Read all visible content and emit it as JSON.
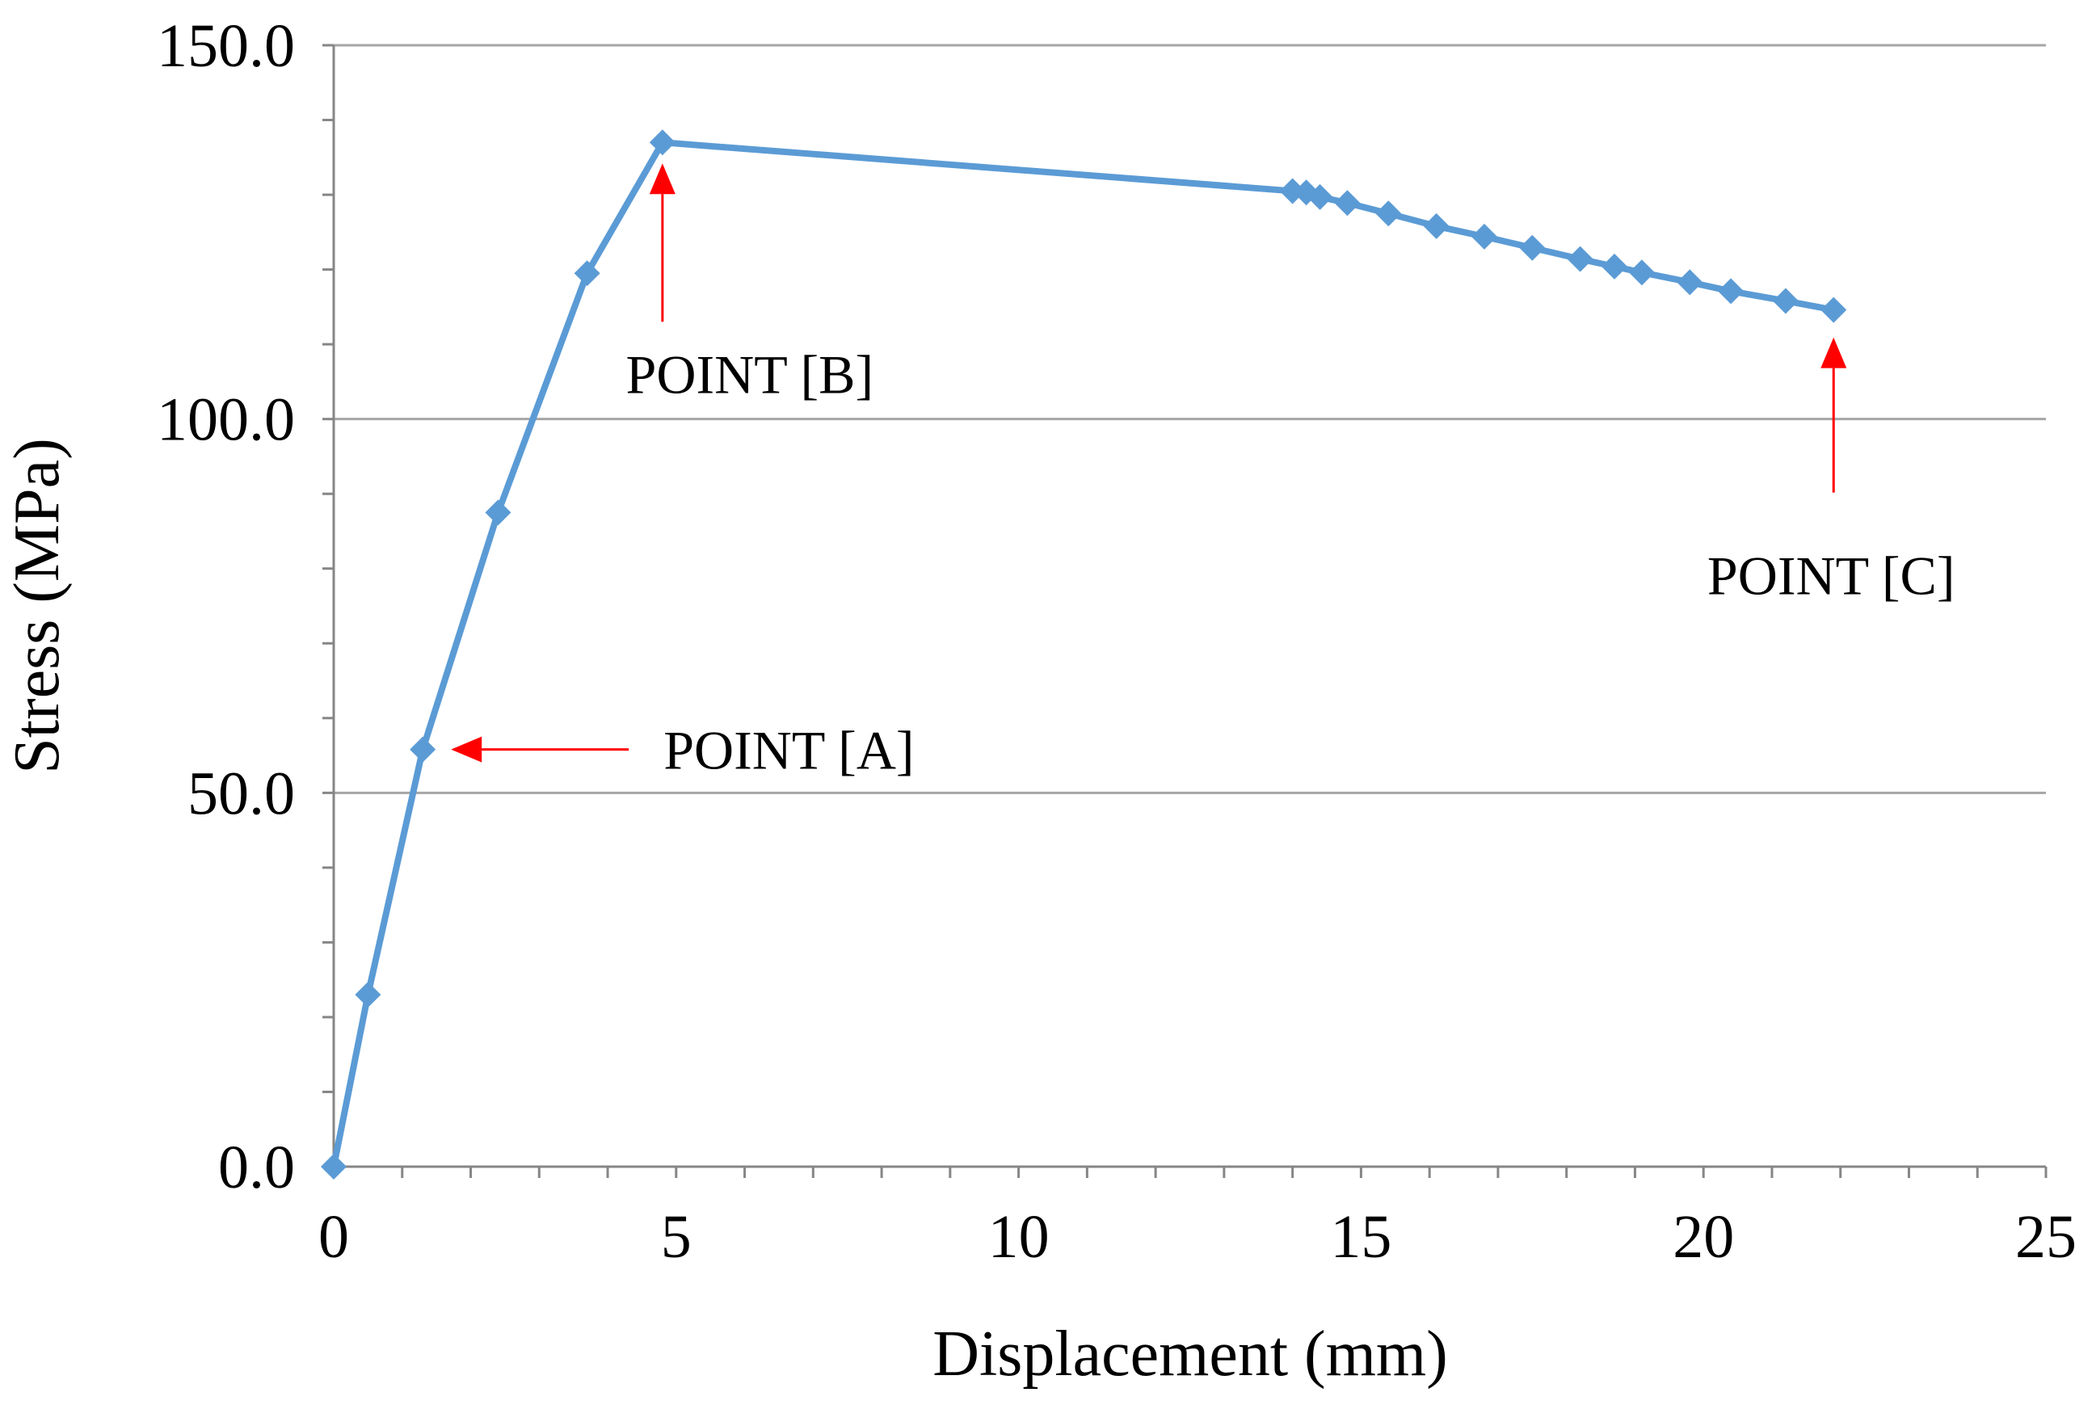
{
  "chart_data": {
    "type": "line",
    "xlabel": "Displacement (mm)",
    "ylabel": "Stress (MPa)",
    "xlim": [
      0,
      25
    ],
    "ylim": [
      0,
      150
    ],
    "x_ticks": [
      0,
      5,
      10,
      15,
      20,
      25
    ],
    "x_tick_labels": [
      "0",
      "5",
      "10",
      "15",
      "20",
      "25"
    ],
    "y_ticks": [
      0,
      50,
      100,
      150
    ],
    "y_tick_labels": [
      "0.0",
      "50.0",
      "100.0",
      "150.0"
    ],
    "x_minor_step": 1,
    "y_minor_step": 10,
    "grid": "horizontal-major",
    "legend": "none",
    "series": [
      {
        "color": "#5B9BD5",
        "marker": "diamond",
        "points": [
          [
            0.0,
            0.0
          ],
          [
            0.5,
            23.0
          ],
          [
            1.3,
            55.8
          ],
          [
            2.4,
            87.5
          ],
          [
            3.7,
            119.5
          ],
          [
            4.8,
            137.0
          ],
          [
            14.0,
            130.5
          ],
          [
            14.2,
            130.3
          ],
          [
            14.4,
            129.7
          ],
          [
            14.8,
            128.9
          ],
          [
            15.4,
            127.5
          ],
          [
            16.1,
            125.8
          ],
          [
            16.8,
            124.4
          ],
          [
            17.5,
            122.9
          ],
          [
            18.2,
            121.4
          ],
          [
            18.7,
            120.4
          ],
          [
            19.1,
            119.6
          ],
          [
            19.8,
            118.3
          ],
          [
            20.4,
            117.1
          ],
          [
            21.2,
            115.8
          ],
          [
            21.9,
            114.6
          ]
        ]
      }
    ],
    "annotations": [
      {
        "label": "POINT [A]",
        "x": 1.3,
        "y": 55.8,
        "arrow_color": "#FF0000"
      },
      {
        "label": "POINT [B]",
        "x": 4.8,
        "y": 137.0,
        "arrow_color": "#FF0000"
      },
      {
        "label": "POINT [C]",
        "x": 21.9,
        "y": 114.6,
        "arrow_color": "#FF0000"
      }
    ]
  }
}
